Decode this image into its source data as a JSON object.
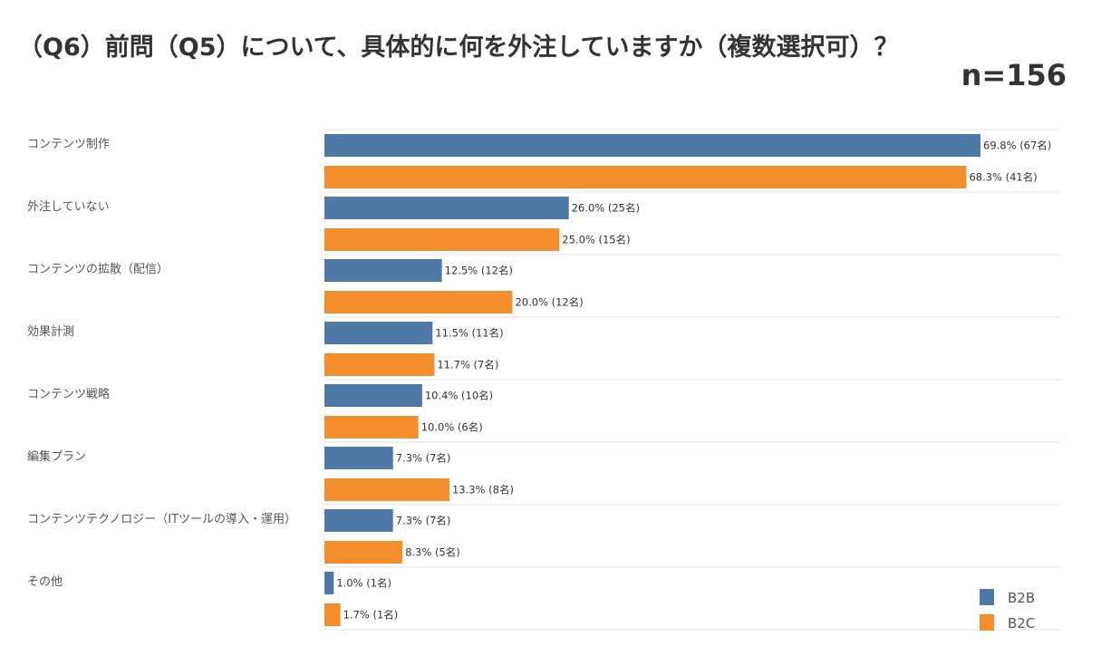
{
  "title": "（Q6）前問（Q5）について、具体的に何を外注していますか（複数選択可）？",
  "sample_size": "n=156",
  "chart_data": {
    "type": "bar",
    "orientation": "horizontal",
    "categories": [
      "コンテンツ制作",
      "外注していない",
      "コンテンツの拡散（配信）",
      "効果計測",
      "コンテンツ戦略",
      "編集プラン",
      "コンテンツテクノロジー（ITツールの導入・運用）",
      "その他"
    ],
    "series": [
      {
        "name": "B2B",
        "color": "#4e78a6",
        "values": [
          69.8,
          26.0,
          12.5,
          11.5,
          10.4,
          7.3,
          7.3,
          1.0
        ],
        "labels": [
          "69.8% (67名)",
          "26.0% (25名)",
          "12.5% (12名)",
          "11.5% (11名)",
          "10.4% (10名)",
          "7.3% (7名)",
          "7.3% (7名)",
          "1.0% (1名)"
        ]
      },
      {
        "name": "B2C",
        "color": "#f28e2b",
        "values": [
          68.3,
          25.0,
          20.0,
          11.7,
          10.0,
          13.3,
          8.3,
          1.7
        ],
        "labels": [
          "68.3% (41名)",
          "25.0% (15名)",
          "20.0% (12名)",
          "11.7% (7名)",
          "10.0% (6名)",
          "13.3% (8名)",
          "8.3% (5名)",
          "1.7% (1名)"
        ]
      }
    ],
    "xlim": [
      0,
      69.8
    ],
    "grid": "horizontal separators between categories",
    "legend_position": "bottom-right"
  }
}
